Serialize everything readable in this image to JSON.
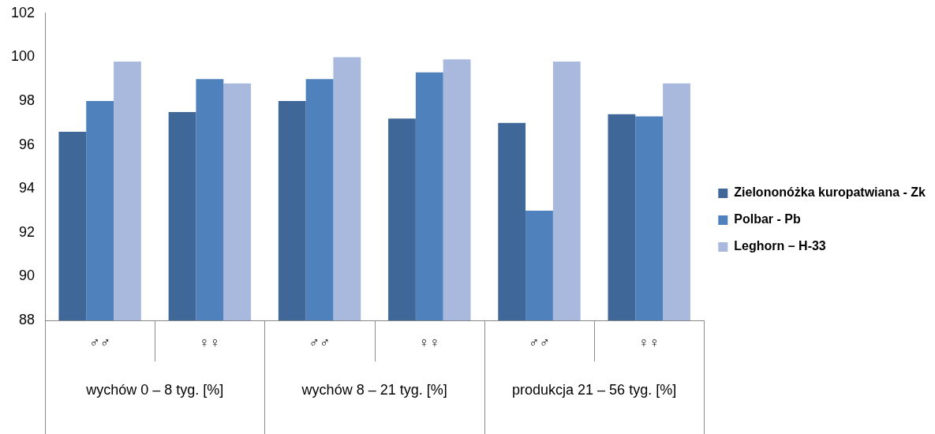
{
  "chart_data": {
    "type": "bar",
    "categories": [
      "♂♂",
      "♀♀",
      "♂♂",
      "♀♀",
      "♂♂",
      "♀♀"
    ],
    "annotations": [
      "wychów 0 – 8 tyg. [%]",
      "wychów 8 – 21 tyg. [%]",
      "produkcja 21 – 56 tyg. [%]"
    ],
    "series": [
      {
        "name": "Zielononóżka kuropatwiana - Zk",
        "color": "#3f6899",
        "values": [
          96.6,
          97.5,
          98.0,
          97.2,
          97.0,
          97.4
        ]
      },
      {
        "name": "Polbar - Pb",
        "color": "#4f81bd",
        "values": [
          98.0,
          99.0,
          99.0,
          99.3,
          93.0,
          97.3
        ]
      },
      {
        "name": "Leghorn – H-33",
        "color": "#a8b9dd",
        "values": [
          99.8,
          98.8,
          100.0,
          99.9,
          99.8,
          98.8
        ]
      }
    ],
    "ylim": [
      88,
      102
    ],
    "yticks": [
      88,
      90,
      92,
      94,
      96,
      98,
      100,
      102
    ],
    "grid": false,
    "legend": "right"
  }
}
